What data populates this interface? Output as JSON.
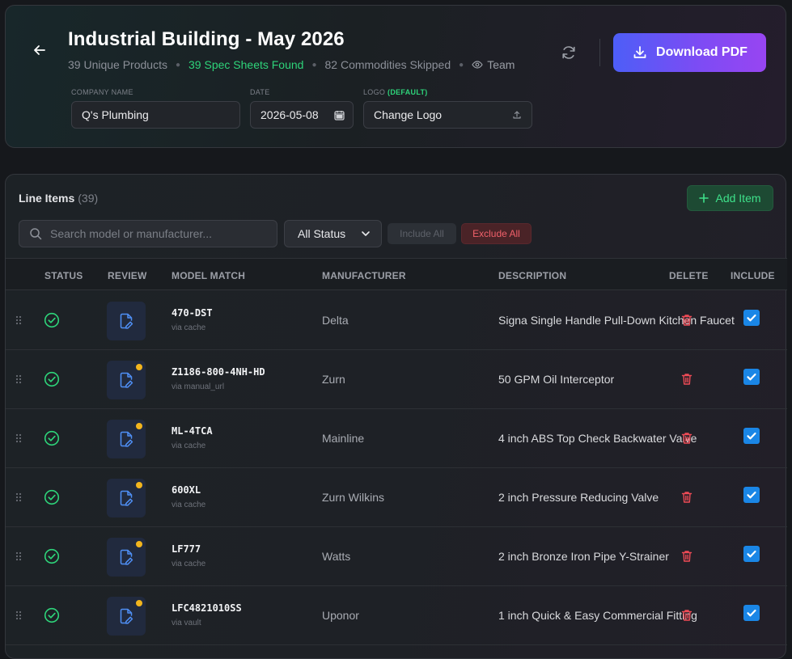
{
  "header": {
    "title": "Industrial Building - May 2026",
    "meta": {
      "unique_products": "39 Unique Products",
      "spec_sheets": "39 Spec Sheets Found",
      "skipped": "82 Commodities Skipped",
      "visibility": "Team"
    },
    "download_label": "Download PDF",
    "fields": {
      "company_label": "COMPANY NAME",
      "company_value": "Q's Plumbing",
      "date_label": "DATE",
      "date_value": "2026-05-08",
      "logo_label": "LOGO",
      "logo_default": "(DEFAULT)",
      "logo_button": "Change Logo"
    }
  },
  "line_items": {
    "title": "Line Items",
    "count": "(39)",
    "add_label": "Add Item",
    "search_placeholder": "Search model or manufacturer...",
    "status_filter": "All Status",
    "include_all": "Include All",
    "exclude_all": "Exclude All",
    "columns": {
      "status": "STATUS",
      "review": "REVIEW",
      "model": "MODEL MATCH",
      "manufacturer": "MANUFACTURER",
      "description": "DESCRIPTION",
      "delete": "DELETE",
      "include": "INCLUDE"
    },
    "rows": [
      {
        "model": "470-DST",
        "via": "via cache",
        "manufacturer": "Delta",
        "description": "Signa Single Handle Pull-Down Kitchen Faucet",
        "badge": false,
        "included": true
      },
      {
        "model": "Z1186-800-4NH-HD",
        "via": "via manual_url",
        "manufacturer": "Zurn",
        "description": "50 GPM Oil Interceptor",
        "badge": true,
        "included": true
      },
      {
        "model": "ML-4TCA",
        "via": "via cache",
        "manufacturer": "Mainline",
        "description": "4 inch ABS Top Check Backwater Valve",
        "badge": true,
        "included": true
      },
      {
        "model": "600XL",
        "via": "via cache",
        "manufacturer": "Zurn Wilkins",
        "description": "2 inch Pressure Reducing Valve",
        "badge": true,
        "included": true
      },
      {
        "model": "LF777",
        "via": "via cache",
        "manufacturer": "Watts",
        "description": "2 inch Bronze Iron Pipe Y-Strainer",
        "badge": true,
        "included": true
      },
      {
        "model": "LFC4821010SS",
        "via": "via vault",
        "manufacturer": "Uponor",
        "description": "1 inch Quick & Easy Commercial Fitting",
        "badge": true,
        "included": true
      }
    ]
  },
  "colors": {
    "accent_green": "#2ed47a",
    "danger_red": "#f0606a",
    "checkbox_blue": "#1a86e6",
    "badge_amber": "#f2b51d"
  }
}
